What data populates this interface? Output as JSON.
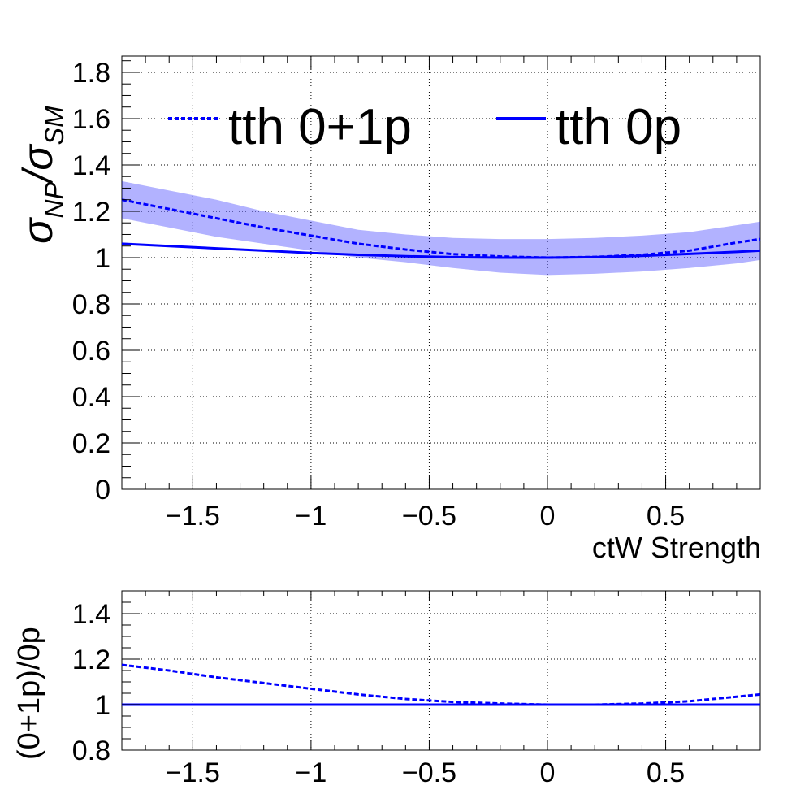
{
  "chart_data": [
    {
      "type": "line",
      "ylabel_main": "σ",
      "ylabel_sub1": "NP",
      "ylabel_slash": "/σ",
      "ylabel_sub2": "SM",
      "xlabel": "ctW Strength",
      "xlim": [
        -1.8,
        0.9
      ],
      "ylim": [
        0,
        1.87
      ],
      "grid": true,
      "legend_placement": "top",
      "x_ticks": [
        -1.5,
        -1,
        -0.5,
        0,
        0.5
      ],
      "x_tick_labels": [
        "−1.5",
        "−1",
        "−0.5",
        "0",
        "0.5"
      ],
      "y_ticks": [
        0,
        0.2,
        0.4,
        0.6,
        0.8,
        1,
        1.2,
        1.4,
        1.6,
        1.8
      ],
      "y_tick_labels": [
        "0",
        "0.2",
        "0.4",
        "0.6",
        "0.8",
        "1",
        "1.2",
        "1.4",
        "1.6",
        "1.8"
      ],
      "x": [
        -1.8,
        -1.6,
        -1.4,
        -1.2,
        -1.0,
        -0.8,
        -0.6,
        -0.4,
        -0.2,
        0.0,
        0.2,
        0.4,
        0.6,
        0.8,
        0.9
      ],
      "series": [
        {
          "name": "tth 0+1p",
          "style": "dashed",
          "color": "#0000ff",
          "values": [
            1.25,
            1.21,
            1.17,
            1.13,
            1.095,
            1.06,
            1.035,
            1.015,
            1.005,
            1.0,
            1.003,
            1.012,
            1.03,
            1.065,
            1.08
          ],
          "band_upper": [
            1.33,
            1.29,
            1.25,
            1.2,
            1.16,
            1.12,
            1.1,
            1.085,
            1.08,
            1.08,
            1.085,
            1.095,
            1.11,
            1.14,
            1.155
          ],
          "band_lower": [
            1.17,
            1.13,
            1.09,
            1.06,
            1.03,
            1.0,
            0.98,
            0.955,
            0.935,
            0.925,
            0.93,
            0.94,
            0.955,
            0.975,
            0.99
          ]
        },
        {
          "name": "tth 0p",
          "style": "solid",
          "color": "#0000ff",
          "values": [
            1.06,
            1.05,
            1.04,
            1.03,
            1.02,
            1.012,
            1.006,
            1.002,
            1.0,
            1.0,
            1.002,
            1.008,
            1.016,
            1.025,
            1.03
          ]
        }
      ]
    },
    {
      "type": "line",
      "ylabel": "(0+1p)/0p",
      "xlim": [
        -1.8,
        0.9
      ],
      "ylim": [
        0.8,
        1.5
      ],
      "grid": true,
      "x_ticks": [
        -1.5,
        -1,
        -0.5,
        0,
        0.5
      ],
      "x_tick_labels": [
        "−1.5",
        "−1",
        "−0.5",
        "0",
        "0.5"
      ],
      "y_ticks": [
        0.8,
        1,
        1.2,
        1.4
      ],
      "y_tick_labels": [
        "0.8",
        "1",
        "1.2",
        "1.4"
      ],
      "x": [
        -1.8,
        -1.6,
        -1.4,
        -1.2,
        -1.0,
        -0.8,
        -0.6,
        -0.4,
        -0.2,
        0.0,
        0.2,
        0.4,
        0.6,
        0.8,
        0.9
      ],
      "series": [
        {
          "style": "dashed",
          "color": "#0000ff",
          "values": [
            1.175,
            1.15,
            1.12,
            1.095,
            1.07,
            1.045,
            1.025,
            1.012,
            1.005,
            1.0,
            1.0,
            1.005,
            1.015,
            1.035,
            1.045
          ]
        },
        {
          "style": "solid",
          "color": "#0000ff",
          "values": [
            1.0,
            1.0,
            1.0,
            1.0,
            1.0,
            1.0,
            1.0,
            1.0,
            1.0,
            1.0,
            1.0,
            1.0,
            1.0,
            1.0,
            1.0
          ]
        }
      ]
    }
  ]
}
